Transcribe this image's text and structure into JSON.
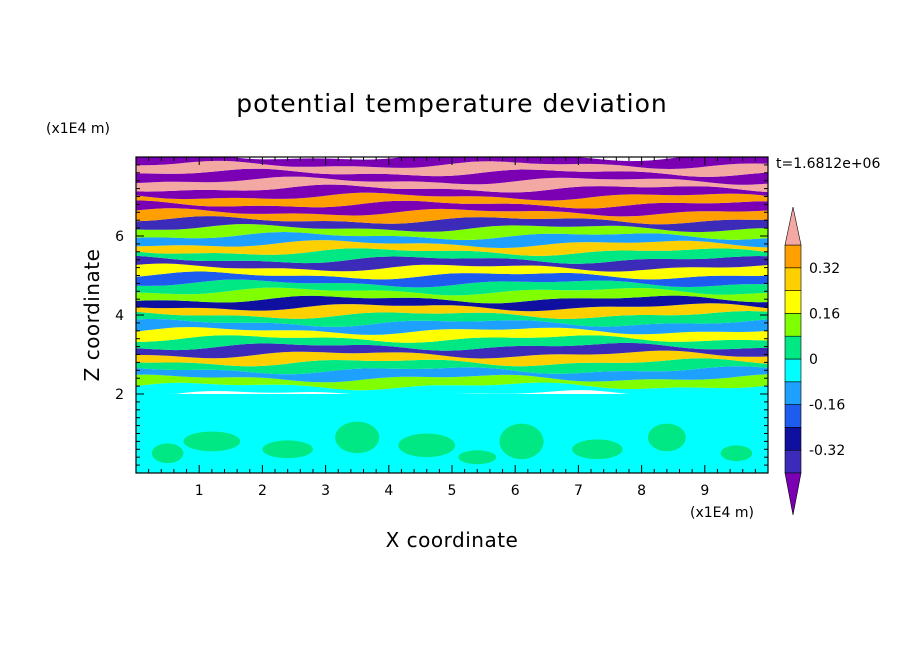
{
  "chart_data": {
    "type": "heatmap",
    "title": "potential temperature deviation",
    "xlabel": "X coordinate",
    "ylabel": "Z coordinate",
    "x_unit": "(x1E4 m)",
    "y_unit": "(x1E4 m)",
    "time_label": "t=1.6812e+06",
    "xlim": [
      0,
      10
    ],
    "ylim": [
      0,
      8
    ],
    "xticks": [
      1,
      2,
      3,
      4,
      5,
      6,
      7,
      8,
      9
    ],
    "yticks": [
      2,
      4,
      6
    ],
    "grid": false,
    "colorbar": {
      "levels": [
        -0.4,
        -0.32,
        -0.24,
        -0.16,
        -0.08,
        0,
        0.08,
        0.16,
        0.24,
        0.32,
        0.4
      ],
      "colors": [
        "#7b00b3",
        "#3b2bb8",
        "#1010a0",
        "#1e5cf0",
        "#1ea0ff",
        "#00ffff",
        "#00e884",
        "#7fff00",
        "#ffff00",
        "#ffd000",
        "#ffa000",
        "#ff5a00",
        "#ff1e1e",
        "#f4a8a4"
      ],
      "tick_labels": [
        "0.32",
        "0.16",
        "0",
        "-0.16",
        "-0.32"
      ],
      "tick_values": [
        0.32,
        0.16,
        0,
        -0.16,
        -0.32
      ],
      "extend": "both"
    },
    "field_description_values": {
      "lower_layer_z_max": 2,
      "lower_layer_values": [
        -0.04,
        0.04
      ],
      "upper_layers_band_values_bottom_to_top": [
        -0.04,
        0.12,
        -0.12,
        0.04,
        0.28,
        -0.36,
        0.04,
        0.2,
        -0.12,
        0.04,
        0.28,
        -0.28,
        0.12,
        0.04,
        -0.2,
        0.2,
        -0.36,
        0.04,
        0.28,
        -0.12,
        0.12,
        -0.36,
        0.36,
        -0.44,
        0.36,
        -0.44,
        0.44,
        -0.44,
        0.44,
        -0.44
      ]
    }
  }
}
